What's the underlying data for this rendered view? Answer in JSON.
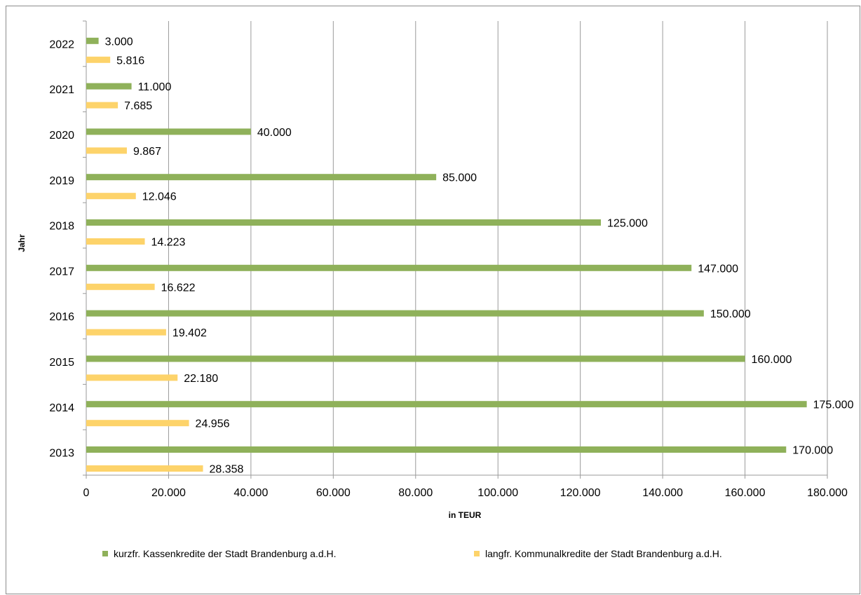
{
  "chart_data": {
    "type": "bar",
    "orientation": "horizontal",
    "categories": [
      "2022",
      "2021",
      "2020",
      "2019",
      "2018",
      "2017",
      "2016",
      "2015",
      "2014",
      "2013"
    ],
    "series": [
      {
        "name": "kurzfr. Kassenkredite der Stadt Brandenburg a.d.H.",
        "color": "#8FB15A",
        "values": [
          3000,
          11000,
          40000,
          85000,
          125000,
          147000,
          150000,
          160000,
          175000,
          170000
        ],
        "labels": [
          "3.000",
          "11.000",
          "40.000",
          "85.000",
          "125.000",
          "147.000",
          "150.000",
          "160.000",
          "175.000",
          "170.000"
        ]
      },
      {
        "name": "langfr. Kommunalkredite der Stadt Brandenburg a.d.H.",
        "color": "#FDD36A",
        "values": [
          5816,
          7685,
          9867,
          12046,
          14223,
          16622,
          19402,
          22180,
          24956,
          28358
        ],
        "labels": [
          "5.816",
          "7.685",
          "9.867",
          "12.046",
          "14.223",
          "16.622",
          "19.402",
          "22.180",
          "24.956",
          "28.358"
        ]
      }
    ],
    "xlabel": "in TEUR",
    "ylabel": "Jahr",
    "xlim": [
      0,
      180000
    ],
    "xticks": [
      0,
      20000,
      40000,
      60000,
      80000,
      100000,
      120000,
      140000,
      160000,
      180000
    ],
    "xtick_labels": [
      "0",
      "20.000",
      "40.000",
      "60.000",
      "80.000",
      "100.000",
      "120.000",
      "140.000",
      "160.000",
      "180.000"
    ],
    "grid": "vertical",
    "legend_position": "bottom"
  }
}
